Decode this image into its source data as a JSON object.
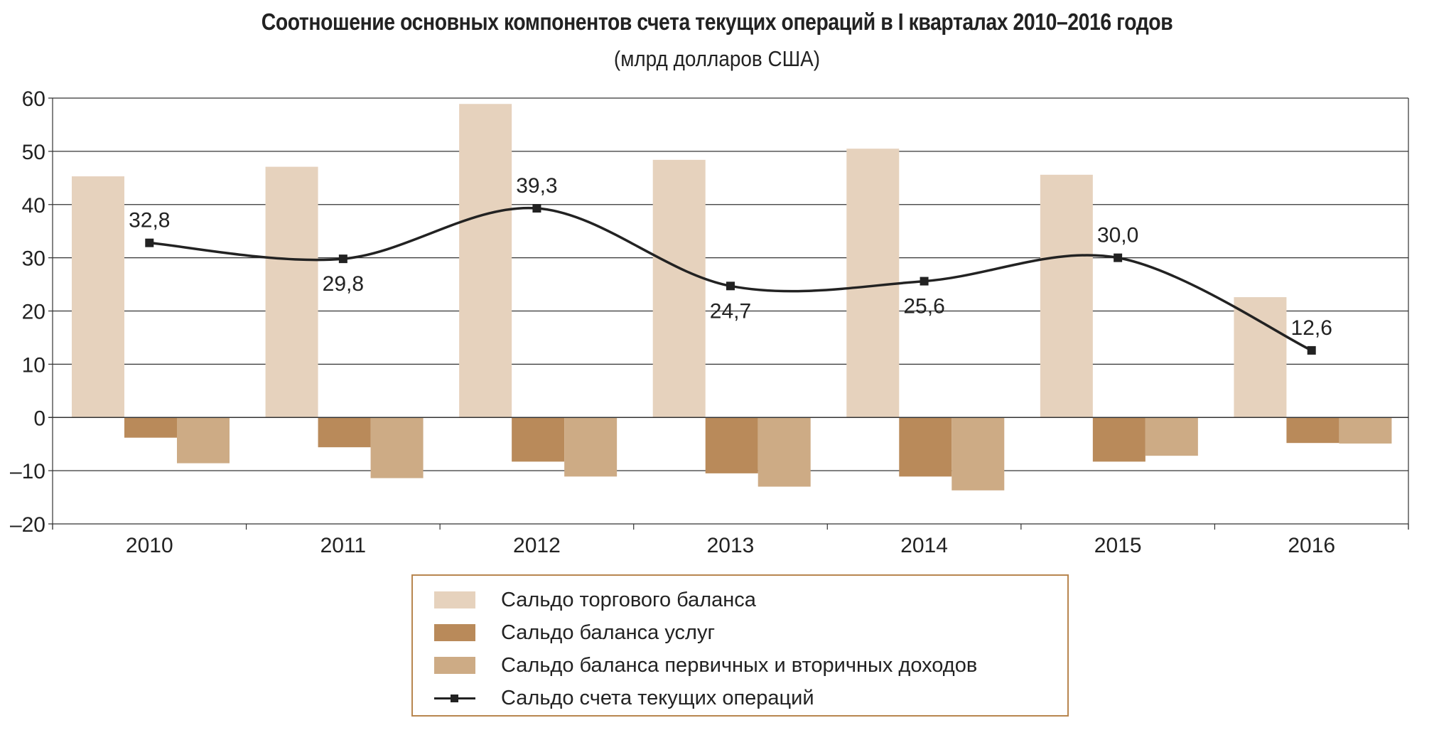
{
  "chart_data": {
    "type": "bar",
    "title": "Соотношение основных компонентов счета текущих операций в I кварталах 2010–2016 годов",
    "subtitle": "(млрд долларов США)",
    "categories": [
      "2010",
      "2011",
      "2012",
      "2013",
      "2014",
      "2015",
      "2016"
    ],
    "ylim": [
      -20,
      60
    ],
    "yticks": [
      "60",
      "50",
      "40",
      "30",
      "20",
      "10",
      "0",
      "–10",
      "–20"
    ],
    "ytick_values": [
      60,
      50,
      40,
      30,
      20,
      10,
      0,
      -10,
      -20
    ],
    "grid": true,
    "legend_position": "bottom",
    "series": [
      {
        "name": "Сальдо торгового баланса",
        "type": "bar",
        "color": "#e6d2bd",
        "values": [
          45.3,
          47.1,
          58.9,
          48.4,
          50.5,
          45.6,
          22.6
        ]
      },
      {
        "name": "Сальдо баланса услуг",
        "type": "bar",
        "color": "#b98a5a",
        "values": [
          -3.8,
          -5.6,
          -8.3,
          -10.5,
          -11.1,
          -8.3,
          -4.8
        ]
      },
      {
        "name": "Сальдо баланса первичных и вторичных доходов",
        "type": "bar",
        "color": "#cdab85",
        "values": [
          -8.6,
          -11.4,
          -11.1,
          -13.0,
          -13.7,
          -7.2,
          -4.9
        ]
      },
      {
        "name": "Сальдо счета текущих операций",
        "type": "line",
        "color": "#222222",
        "values": [
          32.8,
          29.8,
          39.3,
          24.7,
          25.6,
          30.0,
          12.6
        ],
        "labels": [
          "32,8",
          "29,8",
          "39,3",
          "24,7",
          "25,6",
          "30,0",
          "12,6"
        ],
        "label_positions": [
          "above",
          "below",
          "above",
          "below",
          "below",
          "above",
          "above"
        ]
      }
    ]
  }
}
